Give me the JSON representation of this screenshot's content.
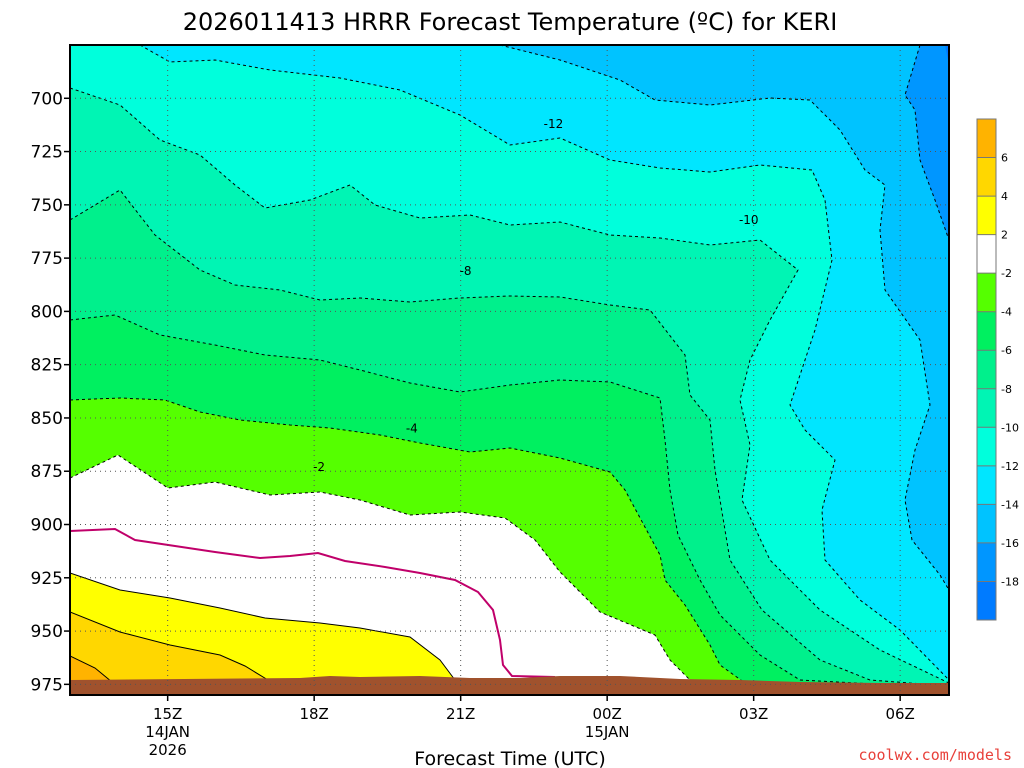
{
  "chart_data": {
    "type": "heatmap",
    "title": "2026011413 HRRR Forecast Temperature (ºC) for KERI",
    "xlabel": "Forecast Time (UTC)",
    "ylabel": "",
    "y_axis": "pressure level (hPa), increasing downward",
    "ylim": [
      675,
      980
    ],
    "y_ticks": [
      "700",
      "725",
      "750",
      "775",
      "800",
      "825",
      "850",
      "875",
      "900",
      "925",
      "950",
      "975"
    ],
    "x_ticks": [
      {
        "hour": 15,
        "label": "15Z",
        "date": "14JAN",
        "year": "2026"
      },
      {
        "hour": 18,
        "label": "18Z",
        "date": "",
        "year": ""
      },
      {
        "hour": 21,
        "label": "21Z",
        "date": "",
        "year": ""
      },
      {
        "hour": 24,
        "label": "00Z",
        "date": "15JAN",
        "year": ""
      },
      {
        "hour": 27,
        "label": "03Z",
        "date": "",
        "year": ""
      },
      {
        "hour": 30,
        "label": "06Z",
        "date": "",
        "year": ""
      }
    ],
    "xlim_hours": [
      13,
      31
    ],
    "grid": true,
    "colorbar": {
      "placement": "right",
      "labels": [
        "6",
        "4",
        "2",
        "-2",
        "-4",
        "-6",
        "-8",
        "-10",
        "-12",
        "-14",
        "-16",
        "-18"
      ],
      "colors": [
        "#ffb300",
        "#ffd700",
        "#ffff00",
        "#ffffff",
        "#55ff00",
        "#00f060",
        "#00f08c",
        "#00f5b4",
        "#00ffdc",
        "#00e6ff",
        "#00c3ff",
        "#0096ff",
        "#007bff"
      ]
    },
    "contour_labels": [
      {
        "text": "-12",
        "hour": 22.9,
        "level": 712
      },
      {
        "text": "-10",
        "hour": 26.9,
        "level": 757
      },
      {
        "text": "-8",
        "hour": 21.1,
        "level": 781
      },
      {
        "text": "-4",
        "hour": 20.0,
        "level": 855
      },
      {
        "text": "-2",
        "hour": 18.1,
        "level": 873
      }
    ],
    "surface_color": "#a0522d"
  },
  "credit": "coolwx.com/models",
  "colors": {
    "freezing_line": "#c0006a",
    "warm_contour": "#000000",
    "cold_contour": "#000000"
  }
}
